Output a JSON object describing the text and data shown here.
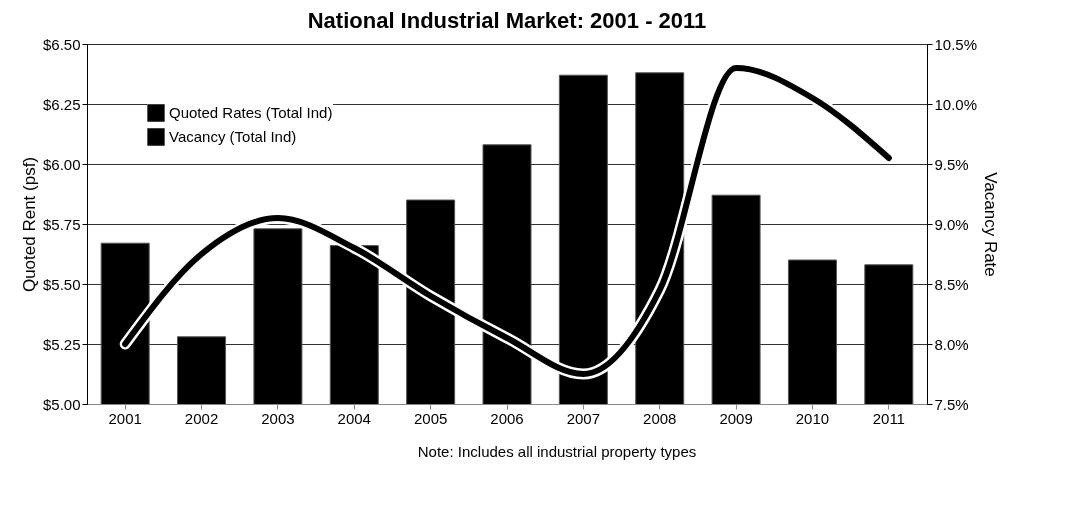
{
  "chart_data": {
    "type": "bar",
    "title": "National Industrial Market: 2001 - 2011",
    "xlabel": null,
    "ylabel": "Quoted Rent (psf)",
    "y2label": "Vacancy Rate",
    "categories": [
      "2001",
      "2002",
      "2003",
      "2004",
      "2005",
      "2006",
      "2007",
      "2008",
      "2009",
      "2010",
      "2011"
    ],
    "series": [
      {
        "name": "Quoted Rates (Total Ind)",
        "type": "bar",
        "color": "#000000",
        "values": [
          5.67,
          5.28,
          5.73,
          5.66,
          5.85,
          6.08,
          6.37,
          6.38,
          5.87,
          5.6,
          5.58
        ]
      },
      {
        "name": "Vacancy (Total Ind)",
        "type": "line",
        "axis": "y2",
        "color": "#000000",
        "values": [
          8.0,
          8.75,
          9.05,
          8.8,
          8.4,
          8.05,
          7.75,
          8.45,
          10.3,
          10.05,
          9.55
        ]
      }
    ],
    "ylim": [
      5.0,
      6.5
    ],
    "yticks": [
      {
        "value": 5.0,
        "label": "$5.00"
      },
      {
        "value": 5.25,
        "label": "$5.25"
      },
      {
        "value": 5.5,
        "label": "$5.50"
      },
      {
        "value": 5.75,
        "label": "$5.75"
      },
      {
        "value": 6.0,
        "label": "$6.00"
      },
      {
        "value": 6.25,
        "label": "$6.25"
      },
      {
        "value": 6.5,
        "label": "$6.50"
      }
    ],
    "y2lim": [
      7.5,
      10.5
    ],
    "y2ticks": [
      {
        "value": 7.5,
        "label": "7.5%"
      },
      {
        "value": 8.0,
        "label": "8.0%"
      },
      {
        "value": 8.5,
        "label": "8.5%"
      },
      {
        "value": 9.0,
        "label": "9.0%"
      },
      {
        "value": 9.5,
        "label": "9.5%"
      },
      {
        "value": 10.0,
        "label": "10.0%"
      },
      {
        "value": 10.5,
        "label": "10.5%"
      }
    ],
    "grid": "y",
    "legend": "top left",
    "marker": "none",
    "line_style": "solid",
    "annotations": [
      "Note: Includes all industrial property types"
    ]
  }
}
